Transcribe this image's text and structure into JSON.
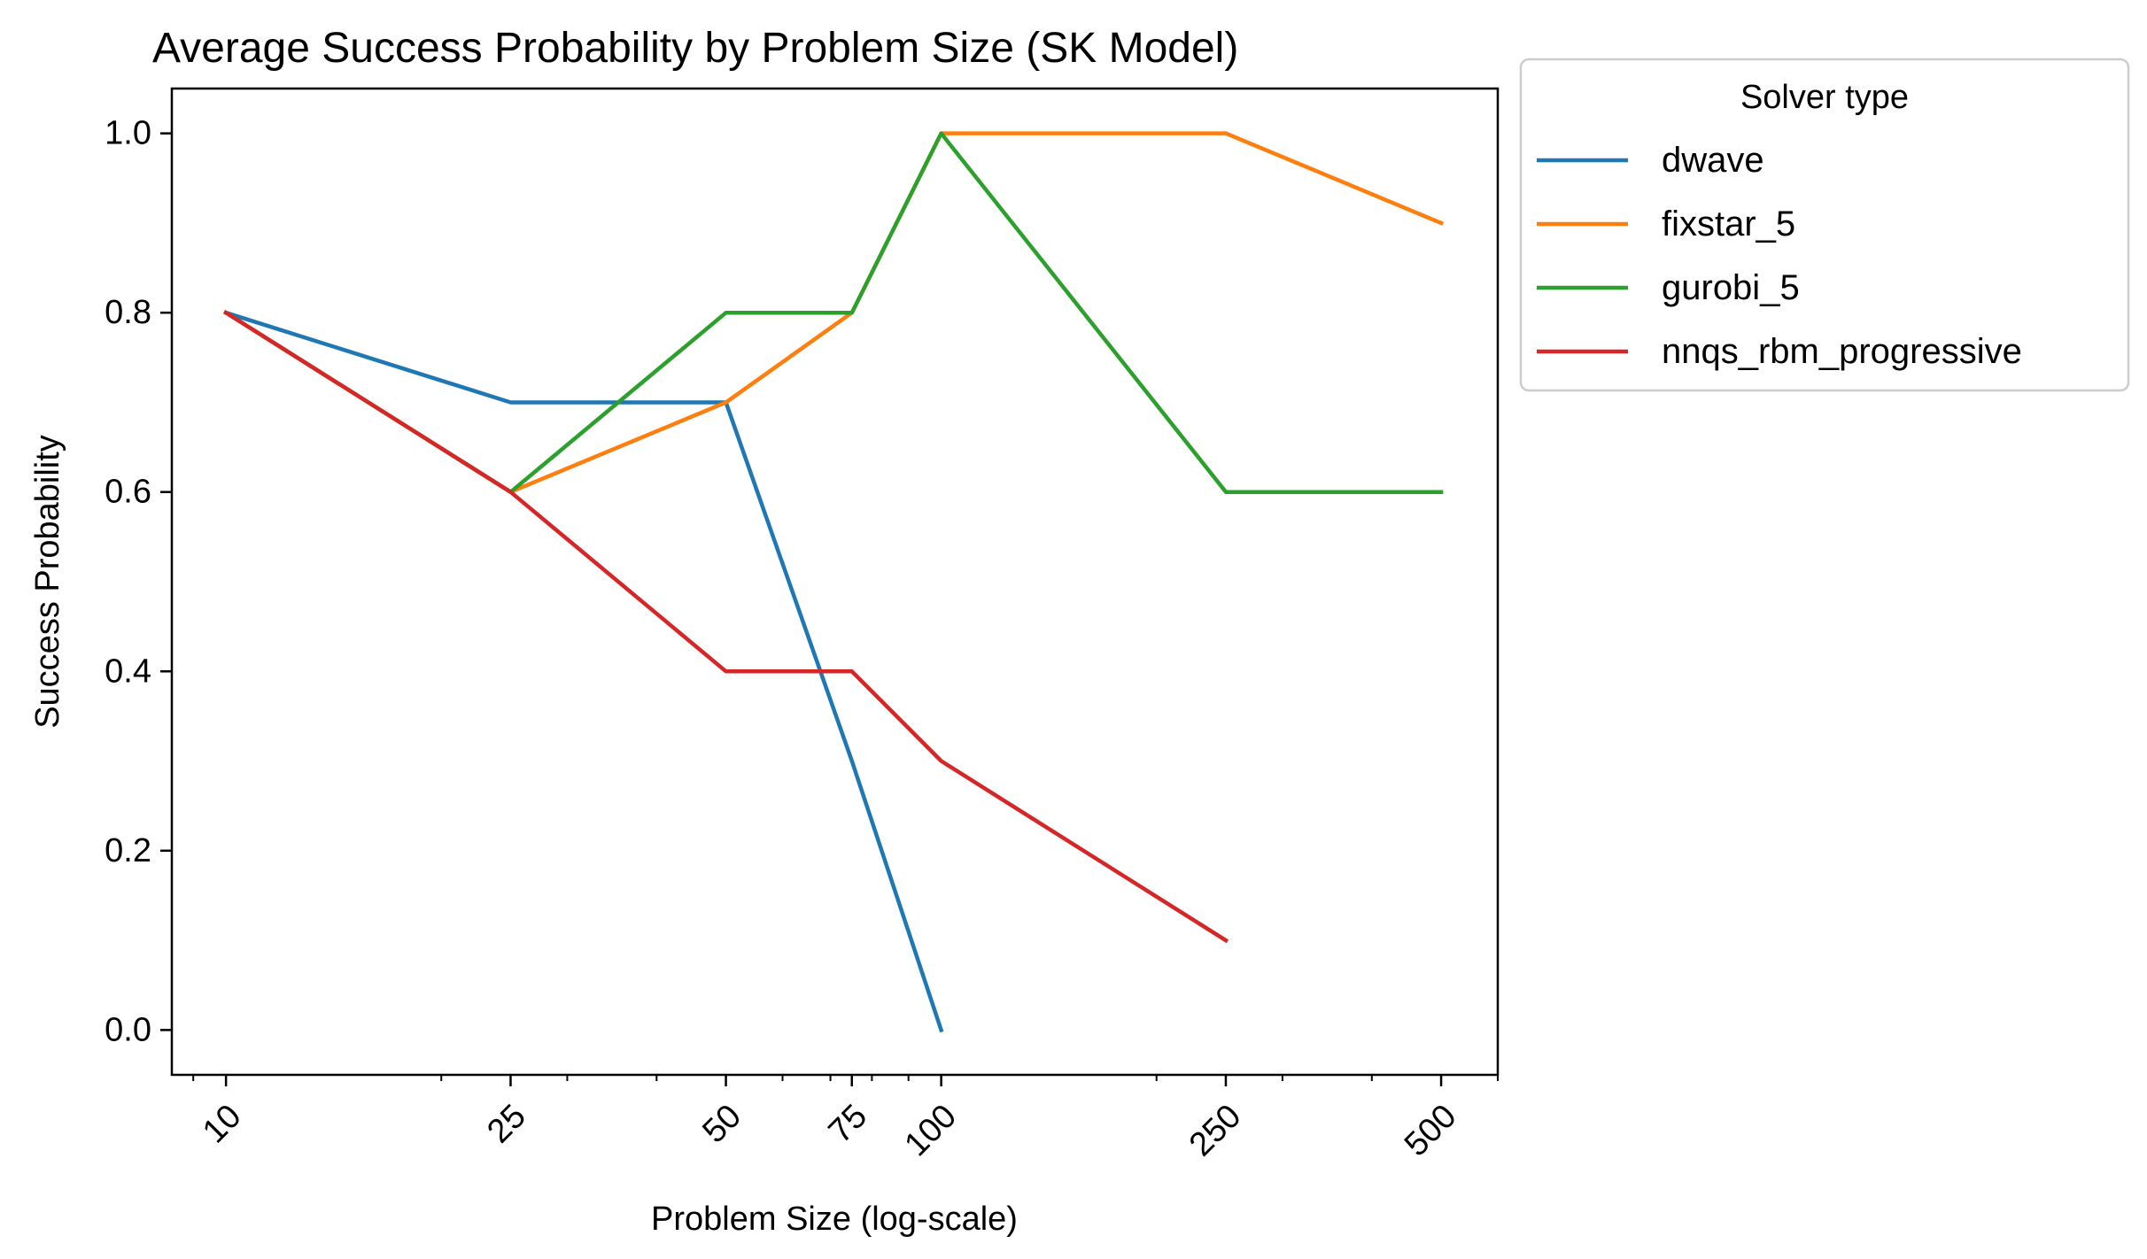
{
  "chart_data": {
    "type": "line",
    "title": "Average Success Probability by Problem Size (SK Model)",
    "xlabel": "Problem Size (log-scale)",
    "ylabel": "Success Probability",
    "xscale": "log",
    "xlim": [
      8.4,
      600
    ],
    "ylim": [
      -0.05,
      1.05
    ],
    "xticks": [
      10,
      25,
      50,
      75,
      100,
      250,
      500
    ],
    "xtick_labels": [
      "10",
      "25",
      "50",
      "75",
      "100",
      "250",
      "500"
    ],
    "yticks": [
      0.0,
      0.2,
      0.4,
      0.6,
      0.8,
      1.0
    ],
    "ytick_labels": [
      "0.0",
      "0.2",
      "0.4",
      "0.6",
      "0.8",
      "1.0"
    ],
    "grid": false,
    "legend": {
      "title": "Solver type",
      "placement": "outside right, top"
    },
    "series": [
      {
        "name": "dwave",
        "color": "#1f77b4",
        "points": [
          [
            10,
            0.8
          ],
          [
            25,
            0.7
          ],
          [
            50,
            0.7
          ],
          [
            75,
            0.3
          ],
          [
            100,
            0.0
          ]
        ]
      },
      {
        "name": "fixstar_5",
        "color": "#ff7f0e",
        "points": [
          [
            10,
            0.8
          ],
          [
            25,
            0.6
          ],
          [
            50,
            0.7
          ],
          [
            75,
            0.8
          ],
          [
            100,
            1.0
          ],
          [
            250,
            1.0
          ],
          [
            500,
            0.9
          ]
        ]
      },
      {
        "name": "gurobi_5",
        "color": "#2ca02c",
        "points": [
          [
            10,
            0.8
          ],
          [
            25,
            0.6
          ],
          [
            50,
            0.8
          ],
          [
            75,
            0.8
          ],
          [
            100,
            1.0
          ],
          [
            250,
            0.6
          ],
          [
            500,
            0.6
          ]
        ]
      },
      {
        "name": "nnqs_rbm_progressive",
        "color": "#d62728",
        "points": [
          [
            10,
            0.8
          ],
          [
            25,
            0.6
          ],
          [
            50,
            0.4
          ],
          [
            75,
            0.4
          ],
          [
            100,
            0.3
          ],
          [
            250,
            0.1
          ]
        ]
      }
    ]
  }
}
